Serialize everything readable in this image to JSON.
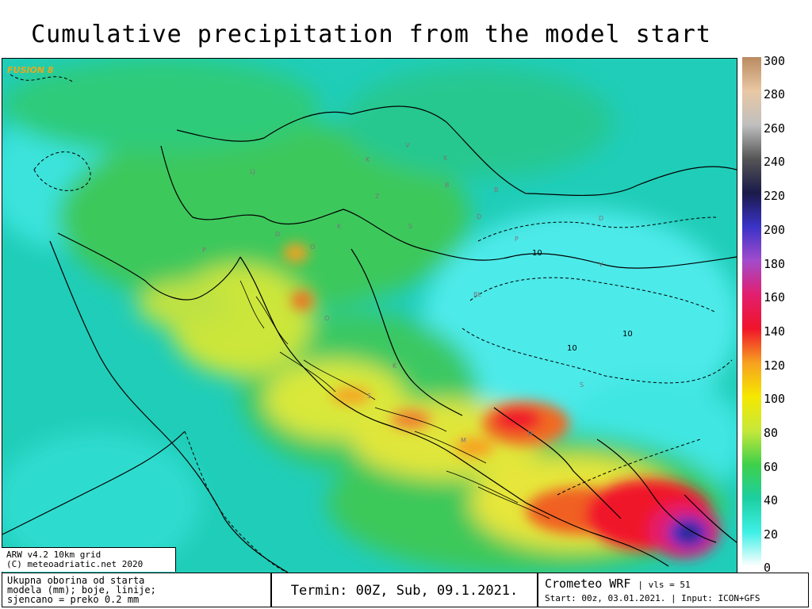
{
  "title": "Cumulative precipitation from the model start",
  "brand_label": "FUSION 8",
  "credit": {
    "line1": "ARW v4.2  10km grid",
    "line2": "(C) meteoadriatic.net 2020"
  },
  "colorbar": {
    "ticks": [
      "300",
      "280",
      "260",
      "240",
      "220",
      "200",
      "180",
      "160",
      "140",
      "120",
      "100",
      "80",
      "60",
      "40",
      "20",
      "0"
    ],
    "unit_min": 0,
    "unit_max": 300
  },
  "contour_labels": [
    "10",
    "10",
    "10"
  ],
  "city_labels": [
    "LJ",
    "P",
    "K",
    "Z",
    "V",
    "K",
    "B",
    "D",
    "O",
    "K",
    "S",
    "D",
    "O",
    "D",
    "P",
    "B",
    "BL",
    "K",
    "M",
    "M",
    "S",
    "V",
    "S"
  ],
  "footer": {
    "desc_line1": "Ukupna oborina od starta",
    "desc_line2": "modela (mm); boje, linije;",
    "desc_line3": "sjencano = preko 0.2 mm",
    "termin": "Termin: 00Z, Sub, 09.1.2021.",
    "model_name": "Crometeo WRF",
    "vls": "| vls = 51",
    "start": "Start: 00z, 03.01.2021.  | Input: ICON+GFS"
  },
  "colors": {
    "scale": [
      "#ffffff",
      "#3ef0e6",
      "#1ccfa0",
      "#3fd04a",
      "#c7e83a",
      "#f5e800",
      "#f7a020",
      "#f0142a",
      "#e21f6e",
      "#a34bcc",
      "#3a33c8",
      "#1a1a4a",
      "#555555",
      "#bfbfbf",
      "#e9c8a4",
      "#b98a60"
    ]
  }
}
